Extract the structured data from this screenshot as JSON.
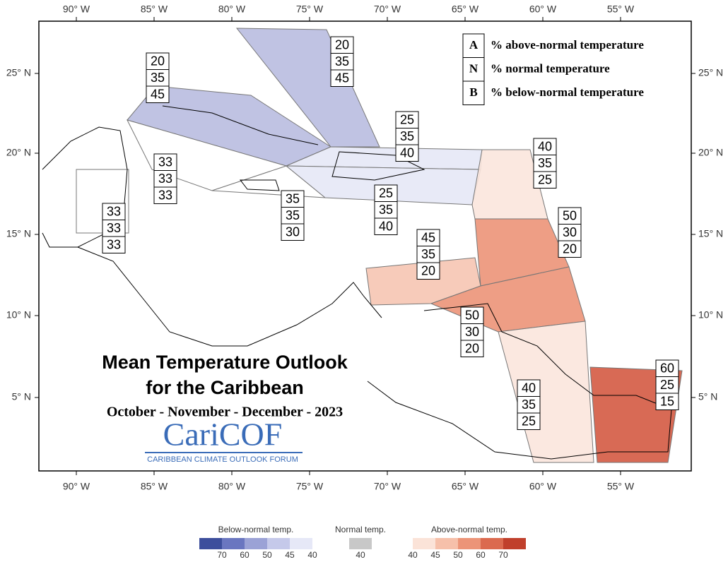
{
  "map": {
    "lon_ticks": [
      "90° W",
      "85° W",
      "80° W",
      "75° W",
      "70° W",
      "65° W",
      "60° W",
      "55° W"
    ],
    "lat_ticks": [
      "25° N",
      "20° N",
      "15° N",
      "10° N",
      "5° N"
    ],
    "key": [
      {
        "letter": "A",
        "text": "% above-normal temperature"
      },
      {
        "letter": "N",
        "text": "% normal temperature"
      },
      {
        "letter": "B",
        "text": "% below-normal temperature"
      }
    ],
    "title_lines": [
      "Mean Temperature Outlook",
      "for the Caribbean"
    ],
    "subtitle": "October - November - December - 2023",
    "logo": "CariCOF",
    "logo_sub": "CARIBBEAN CLIMATE OUTLOOK FORUM",
    "regions": [
      {
        "values": [
          20,
          35,
          45
        ],
        "color": "#b9bde0"
      },
      {
        "values": [
          20,
          35,
          45
        ],
        "color": "#b9bde0"
      },
      {
        "values": [
          33,
          33,
          33
        ],
        "color": "#ffffff"
      },
      {
        "values": [
          25,
          35,
          40
        ],
        "color": "#e6e8f6"
      },
      {
        "values": [
          35,
          35,
          30
        ],
        "color": "#ffffff"
      },
      {
        "values": [
          25,
          35,
          40
        ],
        "color": "#e6e8f6"
      },
      {
        "values": [
          33,
          33,
          33
        ],
        "color": "none"
      },
      {
        "values": [
          40,
          35,
          25
        ],
        "color": "#fbe6dd"
      },
      {
        "values": [
          50,
          30,
          20
        ],
        "color": "#ec9478"
      },
      {
        "values": [
          45,
          35,
          20
        ],
        "color": "#f6c5b2"
      },
      {
        "values": [
          50,
          30,
          20
        ],
        "color": "#ec9478"
      },
      {
        "values": [
          40,
          35,
          25
        ],
        "color": "#fbe6dd"
      },
      {
        "values": [
          60,
          25,
          15
        ],
        "color": "#d45a43"
      }
    ],
    "colorbar": [
      {
        "title": "Below-normal temp.",
        "colors": [
          "#3d4e9c",
          "#6a76c0",
          "#9ba2d6",
          "#c5c9ea",
          "#e6e8f7"
        ],
        "labels": [
          70,
          60,
          50,
          45,
          40
        ]
      },
      {
        "title": "Normal temp.",
        "colors": [
          "#c8c8c8"
        ],
        "labels": [
          40
        ]
      },
      {
        "title": "Above-normal temp.",
        "colors": [
          "#fbe3d8",
          "#f6c0aa",
          "#ec9478",
          "#db6a4f",
          "#c0402c"
        ],
        "labels": [
          40,
          45,
          50,
          60,
          70
        ]
      }
    ]
  }
}
